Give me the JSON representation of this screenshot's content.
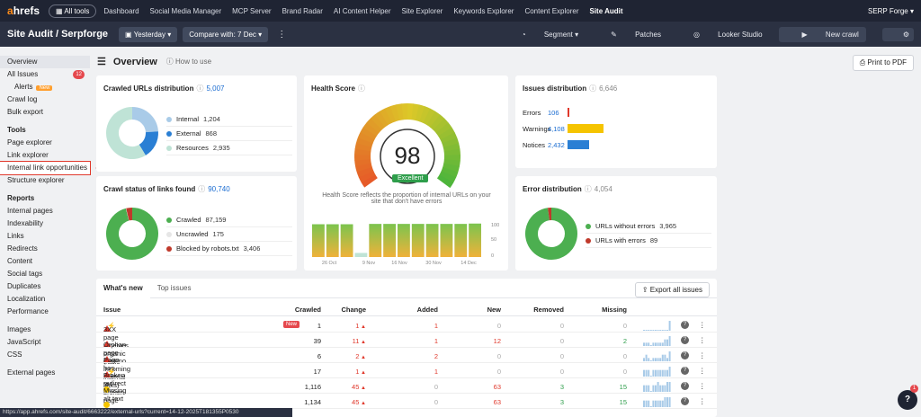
{
  "topbar": {
    "logo_a": "a",
    "logo_rest": "hrefs",
    "all_tools": "All tools",
    "nav": [
      "Dashboard",
      "Social Media Manager",
      "MCP Server",
      "Brand Radar",
      "AI Content Helper",
      "Site Explorer",
      "Keywords Explorer",
      "Content Explorer",
      "Site Audit"
    ],
    "account": "SERP Forge"
  },
  "subbar": {
    "breadcrumb": "Site Audit  /  Serpforge",
    "date": "Yesterday",
    "compare": "Compare with: 7 Dec",
    "segment": "Segment",
    "patches": "Patches",
    "looker": "Looker Studio",
    "new_crawl": "New crawl"
  },
  "sidebar": {
    "overview": "Overview",
    "all_issues": "All Issues",
    "all_issues_count": "12",
    "alerts": "Alerts",
    "alerts_badge": "New",
    "crawl_log": "Crawl log",
    "bulk_export": "Bulk export",
    "tools_head": "Tools",
    "tools": [
      "Page explorer",
      "Link explorer",
      "Internal link opportunities",
      "Structure explorer"
    ],
    "reports_head": "Reports",
    "reports": [
      "Internal pages",
      "Indexability",
      "Links",
      "Redirects",
      "Content",
      "Social tags",
      "Duplicates",
      "Localization",
      "Performance"
    ],
    "other": [
      "Images",
      "JavaScript",
      "CSS"
    ],
    "external": "External pages"
  },
  "overview": {
    "title": "Overview",
    "how_to": "How to use",
    "print": "Print to PDF"
  },
  "crawled_urls": {
    "title": "Crawled URLs distribution",
    "total": "5,007",
    "items": [
      {
        "label": "Internal",
        "value": "1,204",
        "color": "#a9cbe8"
      },
      {
        "label": "External",
        "value": "868",
        "color": "#2a7fd4"
      },
      {
        "label": "Resources",
        "value": "2,935",
        "color": "#bfe3d6"
      }
    ],
    "chart_values": [
      1204,
      868,
      2935
    ]
  },
  "crawl_status": {
    "title": "Crawl status of links found",
    "total": "90,740",
    "items": [
      {
        "label": "Crawled",
        "value": "87,159",
        "color": "#4caf50"
      },
      {
        "label": "Uncrawled",
        "value": "175",
        "color": "#e6e6e6"
      },
      {
        "label": "Blocked by robots.txt",
        "value": "3,406",
        "color": "#c0392b"
      }
    ],
    "chart_values": [
      87159,
      175,
      3406
    ]
  },
  "health": {
    "title": "Health Score",
    "score": "98",
    "rating": "Excellent",
    "note": "Health Score reflects the proportion of internal URLs on your site that don't have errors",
    "axis_dates": [
      "26 Oct",
      "9 Nov",
      "16 Nov",
      "30 Nov",
      "14 Dec"
    ],
    "axis_y": [
      "100",
      "50",
      "0"
    ],
    "history": [
      96,
      96,
      96,
      12,
      97,
      97,
      97,
      97,
      97,
      97,
      97,
      98
    ]
  },
  "issues_dist": {
    "title": "Issues distribution",
    "total": "6,646",
    "rows": [
      {
        "label": "Errors",
        "value": "106",
        "color": "#e0382b",
        "num": 106
      },
      {
        "label": "Warnings",
        "value": "4,108",
        "color": "#f5c400",
        "num": 4108
      },
      {
        "label": "Notices",
        "value": "2,432",
        "color": "#2a7fd4",
        "num": 2432
      }
    ]
  },
  "error_dist": {
    "title": "Error distribution",
    "total": "4,054",
    "items": [
      {
        "label": "URLs without errors",
        "value": "3,965",
        "color": "#4caf50"
      },
      {
        "label": "URLs with errors",
        "value": "89",
        "color": "#c0392b"
      }
    ],
    "chart_values": [
      3965,
      89
    ]
  },
  "table": {
    "tab_new": "What's new",
    "tab_top": "Top issues",
    "export": "Export all issues",
    "headers": [
      "Issue",
      "Crawled",
      "Change",
      "Added",
      "New",
      "Removed",
      "Missing"
    ],
    "rows": [
      {
        "type": "error",
        "issue": "3XX page receives organic traffic",
        "bolt": "⚡",
        "newtag": "New",
        "crawled": "1",
        "change": "1",
        "added": "1",
        "new": "0",
        "removed": "0",
        "missing": "0",
        "spark": [
          0,
          0,
          0,
          0,
          0,
          0,
          0,
          0,
          0,
          0,
          0,
          3
        ]
      },
      {
        "type": "error",
        "issue": "Orphan page (has no incoming internal links)",
        "bolt": "",
        "newtag": "",
        "crawled": "39",
        "change": "11",
        "added": "1",
        "new": "12",
        "removed": "0",
        "missing": "2",
        "spark": [
          1,
          1,
          1,
          0,
          1,
          1,
          1,
          1,
          1,
          2,
          2,
          3
        ]
      },
      {
        "type": "error",
        "issue": "Page has links to broken page",
        "bolt": "",
        "newtag": "",
        "crawled": "6",
        "change": "2",
        "added": "2",
        "new": "0",
        "removed": "0",
        "missing": "0",
        "spark": [
          1,
          2,
          1,
          0,
          1,
          1,
          1,
          1,
          2,
          2,
          1,
          3
        ]
      },
      {
        "type": "error",
        "issue": "Broken redirect",
        "bolt": "⚡",
        "newtag": "",
        "crawled": "17",
        "change": "1",
        "added": "1",
        "new": "0",
        "removed": "0",
        "missing": "0",
        "spark": [
          2,
          2,
          2,
          0,
          2,
          2,
          2,
          2,
          2,
          2,
          2,
          3
        ]
      },
      {
        "type": "notice",
        "issue": "Missing alt text",
        "bolt": "",
        "newtag": "",
        "crawled": "1,116",
        "change": "45",
        "added": "0",
        "new": "63",
        "removed": "3",
        "missing": "15",
        "spark": [
          2,
          2,
          2,
          0,
          2,
          2,
          3,
          2,
          2,
          2,
          3,
          3
        ]
      },
      {
        "type": "notice",
        "issue": "",
        "bolt": "",
        "newtag": "",
        "crawled": "1,134",
        "change": "45",
        "added": "0",
        "new": "63",
        "removed": "3",
        "missing": "15",
        "spark": [
          2,
          2,
          2,
          0,
          2,
          2,
          2,
          2,
          2,
          3,
          3,
          3
        ]
      }
    ]
  },
  "status_url": "https://app.ahrefs.com/site-audit/6663222/external-urls?current=14-12-2025T181355P0530",
  "help": "?",
  "help_badge": "1"
}
